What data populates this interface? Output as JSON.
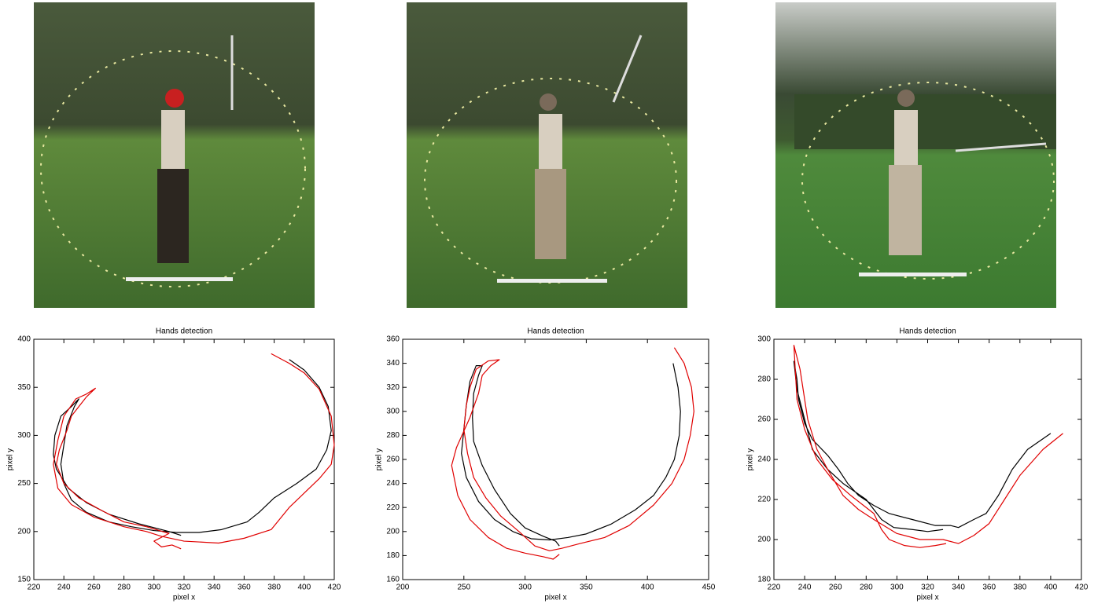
{
  "chart_data": [
    {
      "type": "line",
      "title": "Hands detection",
      "xlabel": "pixel x",
      "ylabel": "pixel y",
      "xlim": [
        220,
        420
      ],
      "xticks": [
        220,
        240,
        260,
        280,
        300,
        320,
        340,
        360,
        380,
        400,
        420
      ],
      "ylim": [
        150,
        400
      ],
      "yticks": [
        150,
        200,
        250,
        300,
        350,
        400
      ],
      "series": [
        {
          "color": "#000000",
          "x": [
            390,
            400,
            410,
            416,
            418,
            415,
            408,
            395,
            380,
            370,
            362,
            345,
            330,
            315,
            300,
            285,
            270,
            255,
            245,
            240,
            238,
            240,
            242,
            247,
            250,
            245,
            238,
            234,
            233,
            235,
            243,
            255,
            270,
            290,
            310,
            318
          ],
          "values": [
            379,
            368,
            350,
            330,
            305,
            285,
            265,
            250,
            235,
            220,
            210,
            202,
            199,
            199,
            201,
            205,
            210,
            220,
            233,
            250,
            270,
            290,
            310,
            330,
            338,
            330,
            320,
            300,
            280,
            265,
            245,
            230,
            218,
            208,
            200,
            196
          ]
        },
        {
          "color": "#e00000",
          "x": [
            378,
            390,
            400,
            410,
            418,
            420,
            418,
            410,
            400,
            390,
            378,
            360,
            343,
            320,
            305,
            295,
            280,
            260,
            245,
            236,
            233,
            236,
            240,
            248,
            255,
            261,
            255,
            250,
            245,
            242,
            237,
            235,
            240,
            250,
            265,
            280,
            295,
            310,
            300,
            305,
            312,
            318
          ],
          "values": [
            385,
            375,
            365,
            348,
            320,
            290,
            270,
            255,
            240,
            225,
            202,
            193,
            188,
            190,
            195,
            200,
            205,
            215,
            228,
            245,
            270,
            295,
            320,
            338,
            343,
            349,
            340,
            330,
            320,
            305,
            285,
            270,
            250,
            235,
            222,
            210,
            205,
            198,
            190,
            184,
            186,
            182
          ]
        }
      ]
    },
    {
      "type": "line",
      "title": "Hands detection",
      "xlabel": "pixel x",
      "ylabel": "pixel y",
      "xlim": [
        200,
        450
      ],
      "xticks": [
        200,
        250,
        300,
        350,
        400,
        450
      ],
      "ylim": [
        160,
        360
      ],
      "yticks": [
        160,
        180,
        200,
        220,
        240,
        260,
        280,
        300,
        320,
        340,
        360
      ],
      "series": [
        {
          "color": "#000000",
          "x": [
            421,
            425,
            427,
            426,
            422,
            415,
            405,
            390,
            370,
            350,
            335,
            320,
            305,
            290,
            275,
            262,
            252,
            248,
            250,
            252,
            255,
            260,
            265,
            262,
            258,
            257,
            258,
            265,
            275,
            288,
            300,
            315,
            325,
            328
          ],
          "values": [
            340,
            320,
            300,
            280,
            260,
            245,
            230,
            218,
            206,
            198,
            195,
            193,
            194,
            200,
            210,
            225,
            245,
            265,
            285,
            305,
            325,
            338,
            338,
            330,
            315,
            295,
            275,
            255,
            235,
            215,
            203,
            196,
            192,
            188
          ]
        },
        {
          "color": "#e00000",
          "x": [
            422,
            430,
            436,
            438,
            435,
            430,
            420,
            405,
            385,
            365,
            345,
            330,
            320,
            308,
            295,
            280,
            268,
            258,
            253,
            250,
            252,
            255,
            260,
            270,
            279,
            272,
            265,
            262,
            255,
            244,
            240,
            245,
            255,
            270,
            285,
            300,
            315,
            323,
            328
          ],
          "values": [
            353,
            340,
            320,
            300,
            280,
            260,
            240,
            222,
            205,
            195,
            190,
            186,
            184,
            188,
            200,
            213,
            228,
            245,
            265,
            285,
            305,
            320,
            335,
            342,
            343,
            338,
            330,
            315,
            295,
            270,
            255,
            230,
            210,
            195,
            186,
            182,
            179,
            177,
            181
          ]
        }
      ]
    },
    {
      "type": "line",
      "title": "Hands detection",
      "xlabel": "pixel x",
      "ylabel": "pixel y",
      "xlim": [
        220,
        420
      ],
      "xticks": [
        220,
        240,
        260,
        280,
        300,
        320,
        340,
        360,
        380,
        400,
        420
      ],
      "ylim": [
        180,
        300
      ],
      "yticks": [
        180,
        200,
        220,
        240,
        260,
        280,
        300
      ],
      "series": [
        {
          "color": "#000000",
          "x": [
            400,
            385,
            375,
            366,
            358,
            350,
            340,
            335,
            325,
            310,
            295,
            285,
            275,
            268,
            262,
            255,
            245,
            240,
            236,
            235,
            233,
            235,
            240,
            245,
            255,
            265,
            280,
            290,
            298,
            310,
            320,
            330
          ],
          "values": [
            253,
            245,
            235,
            222,
            213,
            210,
            206,
            207,
            207,
            210,
            213,
            217,
            222,
            228,
            235,
            242,
            250,
            258,
            270,
            280,
            289,
            275,
            260,
            245,
            235,
            228,
            220,
            210,
            206,
            205,
            204,
            205
          ]
        },
        {
          "color": "#e00000",
          "x": [
            408,
            395,
            380,
            370,
            360,
            350,
            340,
            330,
            315,
            300,
            285,
            275,
            265,
            255,
            248,
            242,
            240,
            237,
            233,
            235,
            240,
            248,
            258,
            270,
            285,
            290,
            295,
            305,
            315,
            325,
            332
          ],
          "values": [
            253,
            245,
            232,
            220,
            208,
            202,
            198,
            200,
            200,
            203,
            210,
            215,
            222,
            235,
            245,
            260,
            270,
            285,
            297,
            270,
            255,
            240,
            230,
            222,
            213,
            205,
            200,
            197,
            196,
            197,
            198
          ]
        }
      ]
    }
  ]
}
